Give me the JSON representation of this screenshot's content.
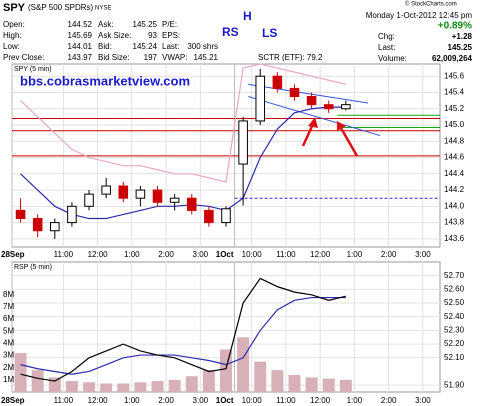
{
  "quote": {
    "symbol": "SPY",
    "name": "(S&P 500 SPDRs)",
    "exchange": "NYSE",
    "credit": "© StockCharts.com",
    "date": "Monday  1-Oct-2012  12:45 pm",
    "pct_change": "+0.89%",
    "columns": [
      [
        {
          "label": "Open:",
          "value": "144.52"
        },
        {
          "label": "High:",
          "value": "145.69"
        },
        {
          "label": "Low:",
          "value": "144.01"
        },
        {
          "label": "Prev Close:",
          "value": "143.97"
        }
      ],
      [
        {
          "label": "Ask:",
          "value": "145.25"
        },
        {
          "label": "Ask Size:",
          "value": "93"
        },
        {
          "label": "Bid:",
          "value": "145.24"
        },
        {
          "label": "Bid Size:",
          "value": "197"
        }
      ],
      [
        {
          "label": "P/E:"
        },
        {
          "label": "EPS:"
        },
        {
          "label": "Last:",
          "value": "300 shrs"
        },
        {
          "label": "VWAP:",
          "value": "145.21"
        }
      ],
      [
        {
          "label": "Chg:",
          "value": "+1.28"
        },
        {
          "label": "Last:",
          "value": "145.25"
        },
        {
          "label": "Volume:",
          "value": "62,009,264"
        }
      ]
    ]
  },
  "chart_data": [
    {
      "type": "candlestick",
      "title": "SPY (5 min)",
      "site": "bbs.cobrasmarketview.com",
      "sctr": "SCTR (ETF): 79.2",
      "annotations": [
        "RS",
        "H",
        "LS"
      ],
      "x": [
        0.25,
        0.75,
        1.25,
        1.75,
        2.25,
        2.75,
        3.25,
        3.75,
        4.25,
        4.75,
        5.25,
        5.75,
        6.25,
        6.75,
        7.25,
        7.75,
        8.25,
        8.75,
        9.25,
        9.75
      ],
      "open": [
        143.95,
        143.85,
        143.7,
        143.8,
        144.0,
        144.15,
        144.25,
        144.1,
        144.2,
        144.05,
        144.1,
        143.95,
        143.8,
        144.52,
        145.05,
        145.6,
        145.45,
        145.35,
        145.25,
        145.2
      ],
      "high": [
        144.1,
        143.9,
        143.85,
        144.05,
        144.2,
        144.35,
        144.3,
        144.25,
        144.25,
        144.15,
        144.15,
        144.0,
        144.0,
        145.1,
        145.69,
        145.65,
        145.5,
        145.4,
        145.3,
        145.3
      ],
      "low": [
        143.8,
        143.62,
        143.6,
        143.75,
        143.95,
        144.1,
        144.05,
        144.0,
        144.0,
        143.95,
        143.9,
        143.75,
        143.75,
        144.01,
        145.0,
        145.4,
        145.3,
        145.2,
        145.15,
        145.18
      ],
      "close": [
        143.85,
        143.7,
        143.8,
        144.0,
        144.15,
        144.25,
        144.1,
        144.2,
        144.05,
        144.1,
        143.95,
        143.8,
        143.97,
        145.05,
        145.6,
        145.45,
        145.35,
        145.25,
        145.2,
        145.25
      ],
      "up_color": "#000000",
      "down_color": "#cc0000",
      "series": [
        {
          "color": "#2b2bb0",
          "values": [
            144.4,
            144.2,
            144.0,
            143.9,
            143.85,
            143.85,
            143.9,
            143.95,
            144.0,
            144.0,
            144.02,
            144.0,
            143.95,
            144.1,
            144.6,
            144.95,
            145.15,
            145.2,
            145.22,
            145.22
          ]
        },
        {
          "color": "#e8a8c8",
          "values": [
            145.3,
            145.1,
            144.9,
            144.7,
            144.6,
            144.55,
            144.5,
            144.5,
            144.45,
            144.4,
            144.4,
            144.35,
            144.3,
            145.7,
            145.75,
            145.7,
            145.65,
            145.6,
            145.55,
            145.5
          ]
        }
      ],
      "hlines": [
        {
          "value": 145.08,
          "color": "#cc0000"
        },
        {
          "value": 144.93,
          "color": "#cc0000"
        },
        {
          "value": 144.62,
          "color": "#cc0000"
        },
        {
          "value": 145.12,
          "color": "#11aa11",
          "from": 9.5
        },
        {
          "value": 144.97,
          "color": "#11aa11",
          "from": 9.5
        },
        {
          "value": 144.1,
          "color": "#2b2bd0",
          "from": 6.5,
          "dash": true
        }
      ],
      "trendlines": [
        {
          "x": [
            6.9,
            10.4
          ],
          "y": [
            145.5,
            145.27
          ],
          "color": "#3355dd"
        },
        {
          "x": [
            6.9,
            10.75
          ],
          "y": [
            145.35,
            144.87
          ],
          "color": "#3355dd"
        }
      ],
      "xlim": [
        0,
        12.5
      ],
      "xticks": [
        {
          "value": 0,
          "label": "28Sep"
        },
        {
          "value": 1.5,
          "label": "11:00"
        },
        {
          "value": 2.5,
          "label": "12:00"
        },
        {
          "value": 3.5,
          "label": "1:00"
        },
        {
          "value": 4.5,
          "label": "2:00"
        },
        {
          "value": 5.5,
          "label": "3:00"
        },
        {
          "value": 6.5,
          "label": "1Oct"
        },
        {
          "value": 7,
          "label": "10:00"
        },
        {
          "value": 8,
          "label": "11:00"
        },
        {
          "value": 9,
          "label": "12:00"
        },
        {
          "value": 10,
          "label": "1:00"
        },
        {
          "value": 11,
          "label": "2:00"
        },
        {
          "value": 12,
          "label": "3:00"
        }
      ],
      "ylim": [
        143.5,
        145.75
      ],
      "yticks": [
        145.6,
        145.4,
        145.2,
        {
          "value": 145,
          "label": "145.0"
        },
        144.8,
        144.6,
        144.4,
        144.2,
        {
          "value": 144,
          "label": "144.0"
        },
        143.8,
        143.6
      ],
      "grid": true
    },
    {
      "type": "line",
      "title": "RSP (5 min)",
      "x": [
        0.25,
        0.75,
        1.25,
        1.75,
        2.25,
        2.75,
        3.25,
        3.75,
        4.25,
        4.75,
        5.25,
        5.75,
        6.25,
        6.75,
        7.25,
        7.75,
        8.25,
        8.75,
        9.25,
        9.75
      ],
      "series": [
        {
          "type": "bar",
          "axis": "y2",
          "color": "#d8b0b8",
          "values": [
            3200000,
            1800000,
            1200000,
            900000,
            800000,
            700000,
            700000,
            800000,
            900000,
            1000000,
            1300000,
            1800000,
            3500000,
            4500000,
            2500000,
            1800000,
            1400000,
            1200000,
            1100000,
            1000000
          ]
        },
        {
          "color": "#2b2bb0",
          "values": [
            52.05,
            52.02,
            52.0,
            51.98,
            52.0,
            52.05,
            52.1,
            52.12,
            52.12,
            52.12,
            52.1,
            52.08,
            52.05,
            52.1,
            52.3,
            52.45,
            52.52,
            52.54,
            52.54,
            52.54
          ]
        },
        {
          "color": "#000000",
          "values": [
            51.98,
            51.95,
            51.93,
            52.0,
            52.1,
            52.15,
            52.2,
            52.15,
            52.12,
            52.1,
            52.05,
            52.0,
            52.02,
            52.5,
            52.68,
            52.62,
            52.58,
            52.56,
            52.52,
            52.55
          ]
        }
      ],
      "xlim": [
        0,
        12.5
      ],
      "xticks": [
        {
          "value": 0,
          "label": "28Sep"
        },
        {
          "value": 1.5,
          "label": "11:00"
        },
        {
          "value": 2.5,
          "label": "12:00"
        },
        {
          "value": 3.5,
          "label": "1:00"
        },
        {
          "value": 4.5,
          "label": "2:00"
        },
        {
          "value": 5.5,
          "label": "3:00"
        },
        {
          "value": 6.5,
          "label": "1Oct"
        },
        {
          "value": 7,
          "label": "10:00"
        },
        {
          "value": 8,
          "label": "11:00"
        },
        {
          "value": 9,
          "label": "12:00"
        },
        {
          "value": 10,
          "label": "1:00"
        },
        {
          "value": 11,
          "label": "2:00"
        },
        {
          "value": 12,
          "label": "3:00"
        }
      ],
      "ylim": [
        51.85,
        52.8
      ],
      "yticks": [
        {
          "value": 52.7,
          "label": "52.70"
        },
        {
          "value": 52.6,
          "label": "52.60"
        },
        {
          "value": 52.5,
          "label": "52.50"
        },
        {
          "value": 52.4,
          "label": "52.40"
        },
        {
          "value": 52.3,
          "label": "52.30"
        },
        {
          "value": 52.2,
          "label": "52.20"
        },
        {
          "value": 52.1,
          "label": "52.10"
        },
        {
          "value": 51.9,
          "label": "51.90"
        }
      ],
      "y2lim": [
        0,
        10700000
      ],
      "y2ticks": [
        {
          "value": 8000000,
          "label": "8M"
        },
        {
          "value": 7000000,
          "label": "7M"
        },
        {
          "value": 6000000,
          "label": "6M"
        },
        {
          "value": 5000000,
          "label": "5M"
        },
        {
          "value": 4000000,
          "label": "4M"
        },
        {
          "value": 3000000,
          "label": "3M"
        },
        {
          "value": 2000000,
          "label": "2M"
        },
        {
          "value": 1000000,
          "label": "1M"
        }
      ],
      "grid": true
    }
  ]
}
